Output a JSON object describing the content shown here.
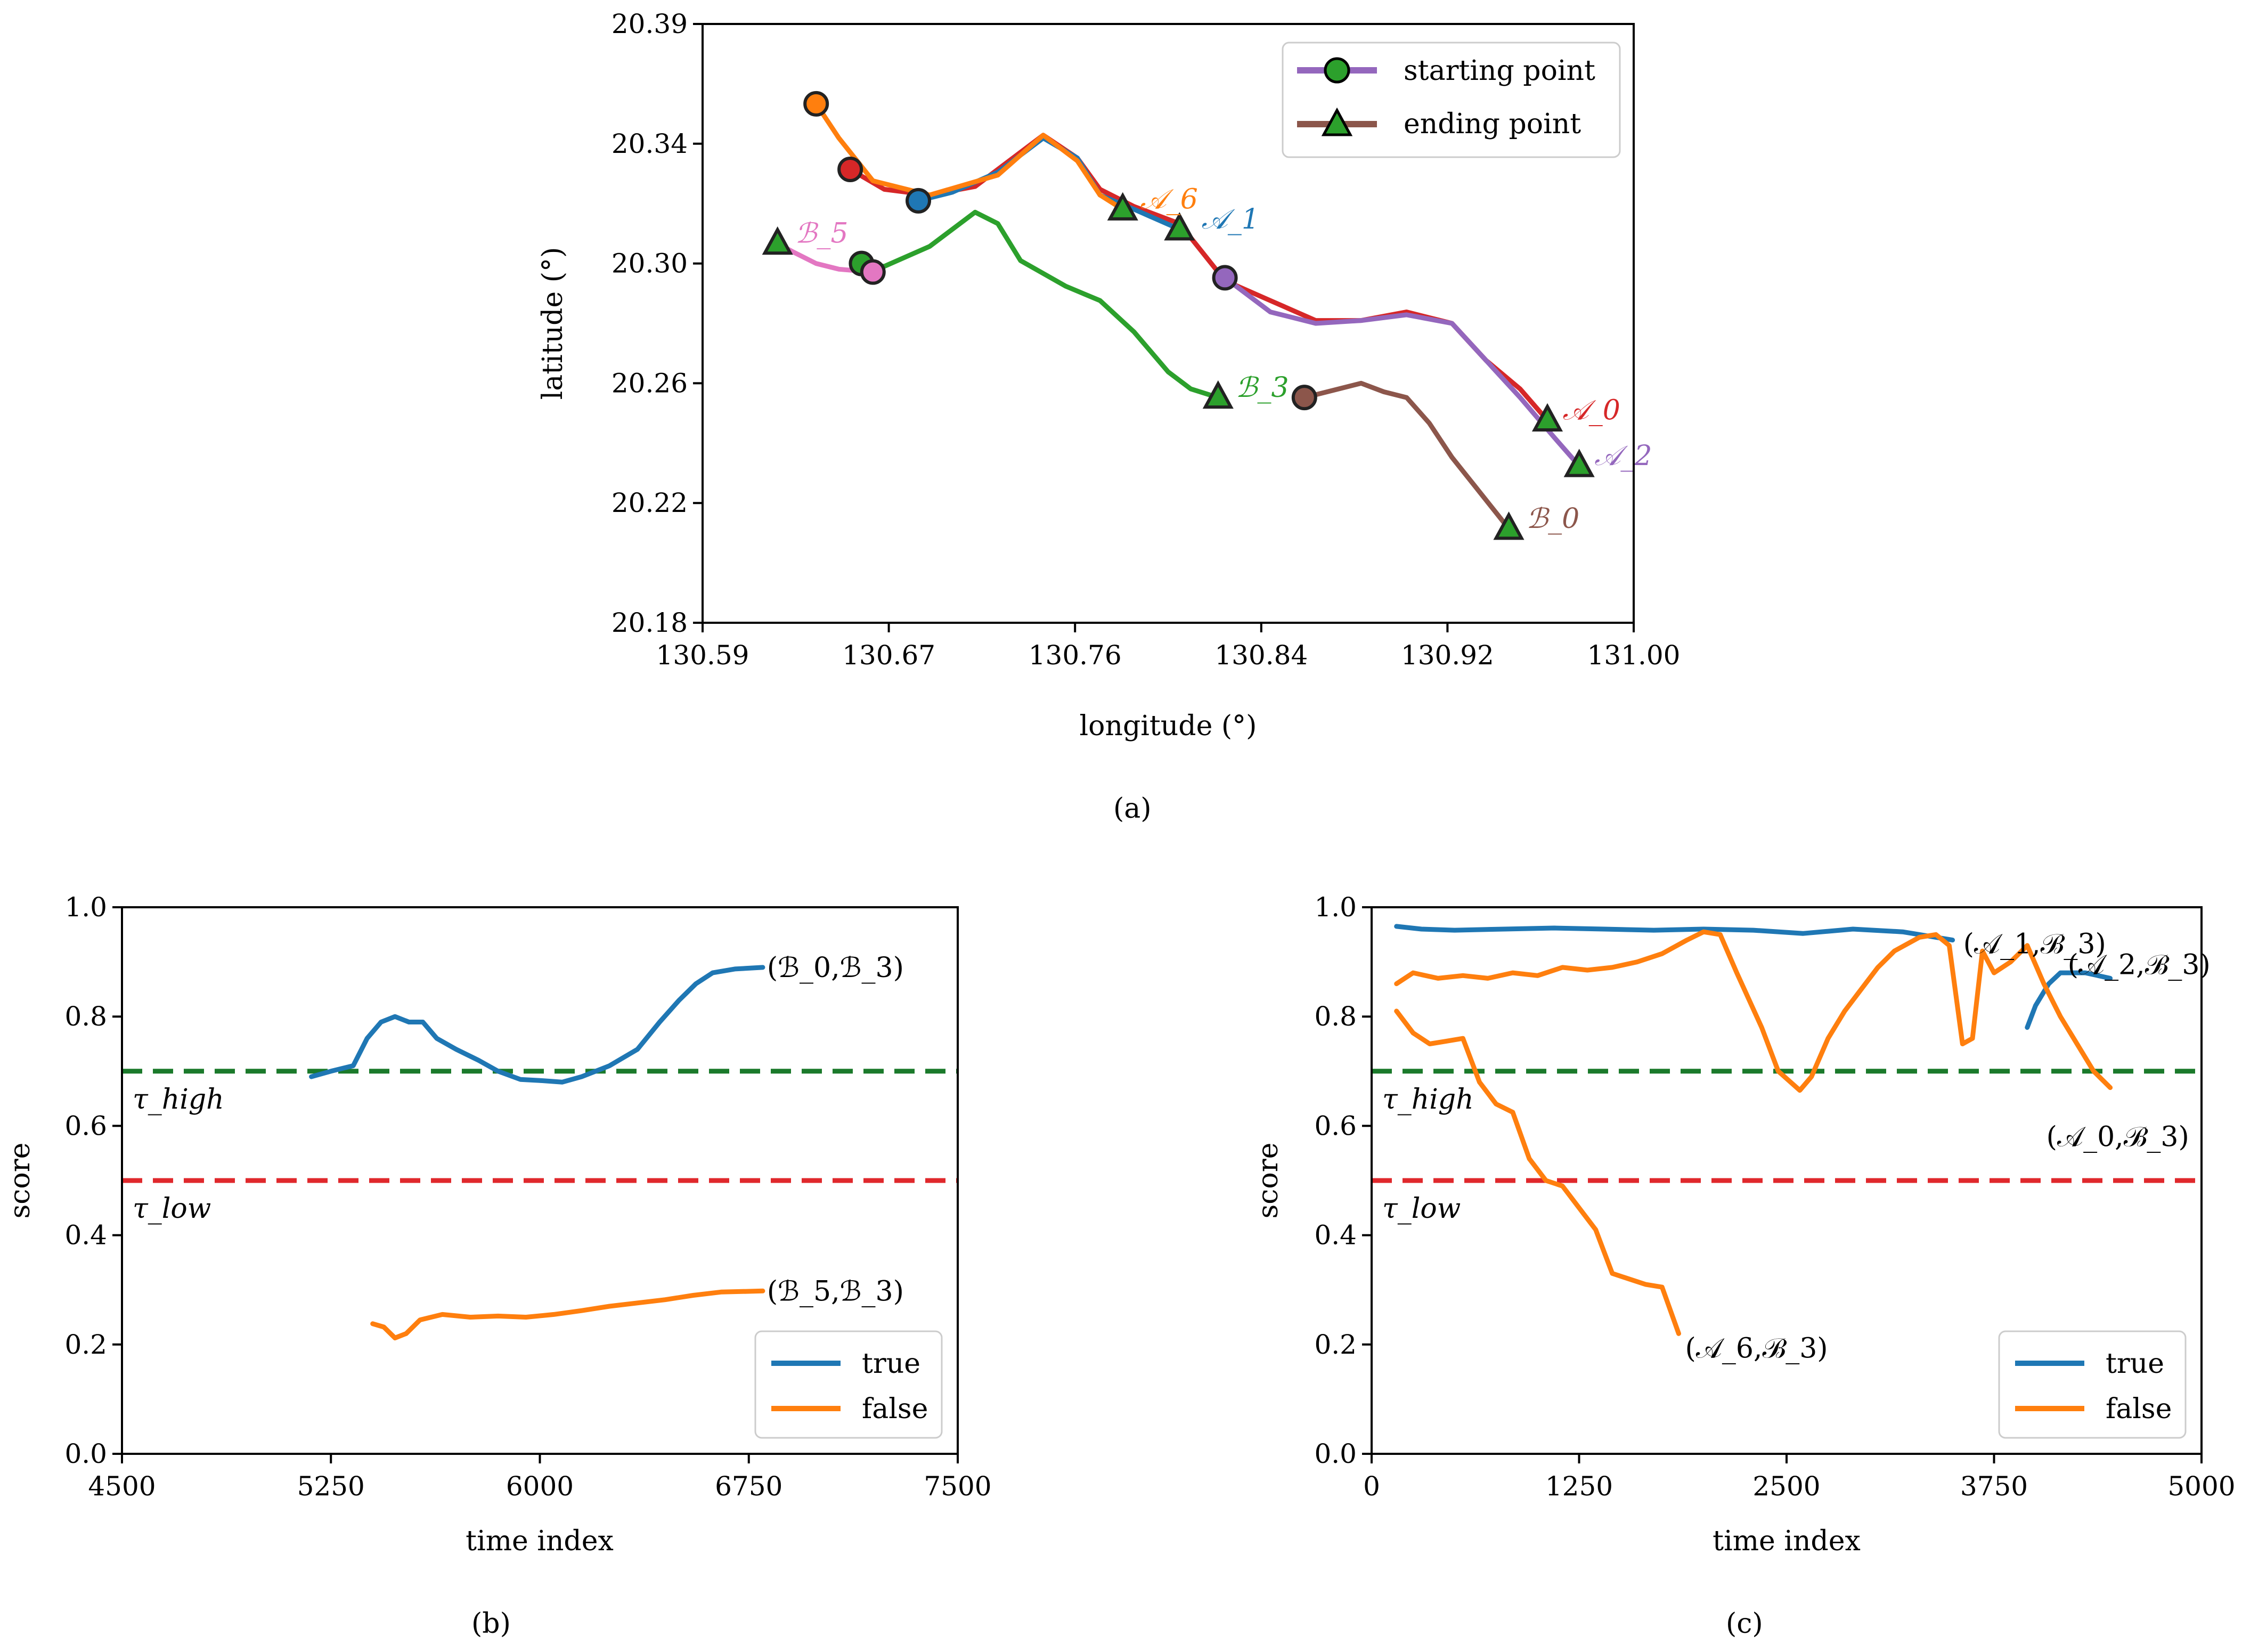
{
  "chart_data": [
    {
      "id": "a",
      "type": "line",
      "caption": "(a)",
      "xlabel": "longitude (°)",
      "ylabel": "latitude (°)",
      "xlim": [
        130.59,
        131.0
      ],
      "ylim": [
        20.18,
        20.39
      ],
      "xticks": [
        "130.59",
        "130.67",
        "130.76",
        "130.84",
        "130.92",
        "131.00"
      ],
      "yticks": [
        "20.18",
        "20.22",
        "20.26",
        "20.30",
        "20.34",
        "20.39"
      ],
      "legend": {
        "position": "top-right",
        "entries": [
          "starting point",
          "ending point"
        ]
      },
      "series": [
        {
          "name": "𝒜_0",
          "color": "#d62728",
          "start": [
            130.655,
            20.339
          ],
          "end": [
            130.962,
            20.251
          ],
          "label_at": [
            130.964,
            20.255
          ],
          "points": [
            [
              130.655,
              20.339
            ],
            [
              130.67,
              20.332
            ],
            [
              130.69,
              20.33
            ],
            [
              130.71,
              20.333
            ],
            [
              130.725,
              20.342
            ],
            [
              130.74,
              20.351
            ],
            [
              130.755,
              20.343
            ],
            [
              130.765,
              20.332
            ],
            [
              130.78,
              20.326
            ],
            [
              130.8,
              20.32
            ],
            [
              130.82,
              20.3
            ],
            [
              130.84,
              20.293
            ],
            [
              130.86,
              20.286
            ],
            [
              130.88,
              20.286
            ],
            [
              130.9,
              20.289
            ],
            [
              130.92,
              20.285
            ],
            [
              130.935,
              20.272
            ],
            [
              130.95,
              20.262
            ],
            [
              130.962,
              20.251
            ]
          ]
        },
        {
          "name": "𝒜_1",
          "color": "#1f77b4",
          "start": [
            130.685,
            20.328
          ],
          "end": [
            130.8,
            20.318
          ],
          "label_at": [
            130.805,
            20.322
          ],
          "points": [
            [
              130.685,
              20.328
            ],
            [
              130.7,
              20.331
            ],
            [
              130.72,
              20.338
            ],
            [
              130.74,
              20.35
            ],
            [
              130.755,
              20.343
            ],
            [
              130.765,
              20.33
            ],
            [
              130.78,
              20.325
            ],
            [
              130.8,
              20.318
            ]
          ]
        },
        {
          "name": "𝒜_2",
          "color": "#9467bd",
          "start": [
            130.82,
            20.301
          ],
          "end": [
            130.976,
            20.235
          ],
          "label_at": [
            130.978,
            20.239
          ],
          "points": [
            [
              130.82,
              20.301
            ],
            [
              130.84,
              20.289
            ],
            [
              130.86,
              20.285
            ],
            [
              130.88,
              20.286
            ],
            [
              130.9,
              20.288
            ],
            [
              130.92,
              20.285
            ],
            [
              130.935,
              20.272
            ],
            [
              130.95,
              20.259
            ],
            [
              130.965,
              20.245
            ],
            [
              130.976,
              20.235
            ]
          ]
        },
        {
          "name": "𝒜_6",
          "color": "#ff7f0e",
          "start": [
            130.64,
            20.362
          ],
          "end": [
            130.775,
            20.325
          ],
          "label_at": [
            130.778,
            20.329
          ],
          "points": [
            [
              130.64,
              20.362
            ],
            [
              130.65,
              20.35
            ],
            [
              130.665,
              20.335
            ],
            [
              130.69,
              20.33
            ],
            [
              130.72,
              20.337
            ],
            [
              130.74,
              20.351
            ],
            [
              130.755,
              20.342
            ],
            [
              130.765,
              20.33
            ],
            [
              130.775,
              20.325
            ]
          ]
        },
        {
          "name": "ℬ_0",
          "color": "#8c564b",
          "start": [
            130.855,
            20.259
          ],
          "end": [
            130.945,
            20.213
          ],
          "label_at": [
            130.948,
            20.217
          ],
          "points": [
            [
              130.855,
              20.259
            ],
            [
              130.87,
              20.262
            ],
            [
              130.88,
              20.264
            ],
            [
              130.89,
              20.261
            ],
            [
              130.9,
              20.259
            ],
            [
              130.91,
              20.25
            ],
            [
              130.92,
              20.238
            ],
            [
              130.93,
              20.228
            ],
            [
              130.94,
              20.218
            ],
            [
              130.945,
              20.213
            ]
          ]
        },
        {
          "name": "ℬ_3",
          "color": "#2ca02c",
          "start": [
            130.66,
            20.306
          ],
          "end": [
            130.817,
            20.259
          ],
          "label_at": [
            130.82,
            20.263
          ],
          "points": [
            [
              130.66,
              20.306
            ],
            [
              130.67,
              20.305
            ],
            [
              130.69,
              20.312
            ],
            [
              130.71,
              20.324
            ],
            [
              130.72,
              20.32
            ],
            [
              130.73,
              20.307
            ],
            [
              130.75,
              20.298
            ],
            [
              130.765,
              20.293
            ],
            [
              130.78,
              20.282
            ],
            [
              130.795,
              20.268
            ],
            [
              130.805,
              20.262
            ],
            [
              130.817,
              20.259
            ]
          ]
        },
        {
          "name": "ℬ_5",
          "color": "#e377c2",
          "start": [
            130.665,
            20.303
          ],
          "end": [
            130.623,
            20.313
          ],
          "label_at": [
            130.626,
            20.317
          ],
          "points": [
            [
              130.665,
              20.303
            ],
            [
              130.65,
              20.304
            ],
            [
              130.64,
              20.306
            ],
            [
              130.63,
              20.31
            ],
            [
              130.623,
              20.313
            ]
          ]
        }
      ]
    },
    {
      "id": "b",
      "type": "line",
      "caption": "(b)",
      "xlabel": "time index",
      "ylabel": "score",
      "xlim": [
        4500,
        7500
      ],
      "ylim": [
        0.0,
        1.0
      ],
      "xticks": [
        "4500",
        "5250",
        "6000",
        "6750",
        "7500"
      ],
      "yticks": [
        "0.0",
        "0.2",
        "0.4",
        "0.6",
        "0.8",
        "1.0"
      ],
      "thresholds": [
        {
          "name": "τ_high",
          "value": 0.7,
          "color": "#1b7a2b"
        },
        {
          "name": "τ_low",
          "value": 0.5,
          "color": "#e0282c"
        }
      ],
      "legend": {
        "position": "bottom-right",
        "entries": [
          {
            "name": "true",
            "color": "#1f77b4"
          },
          {
            "name": "false",
            "color": "#ff7f0e"
          }
        ]
      },
      "series": [
        {
          "name": "true",
          "label": "(ℬ_0,ℬ_3)",
          "color": "#1f77b4",
          "points": [
            [
              5180,
              0.69
            ],
            [
              5250,
              0.7
            ],
            [
              5330,
              0.71
            ],
            [
              5380,
              0.76
            ],
            [
              5430,
              0.79
            ],
            [
              5480,
              0.8
            ],
            [
              5530,
              0.79
            ],
            [
              5580,
              0.79
            ],
            [
              5630,
              0.76
            ],
            [
              5700,
              0.74
            ],
            [
              5780,
              0.72
            ],
            [
              5850,
              0.7
            ],
            [
              5930,
              0.685
            ],
            [
              6000,
              0.683
            ],
            [
              6080,
              0.68
            ],
            [
              6150,
              0.69
            ],
            [
              6250,
              0.71
            ],
            [
              6350,
              0.74
            ],
            [
              6430,
              0.79
            ],
            [
              6500,
              0.83
            ],
            [
              6560,
              0.86
            ],
            [
              6620,
              0.88
            ],
            [
              6700,
              0.887
            ],
            [
              6800,
              0.89
            ]
          ]
        },
        {
          "name": "false",
          "label": "(ℬ_5,ℬ_3)",
          "color": "#ff7f0e",
          "points": [
            [
              5400,
              0.238
            ],
            [
              5440,
              0.232
            ],
            [
              5480,
              0.212
            ],
            [
              5520,
              0.22
            ],
            [
              5570,
              0.245
            ],
            [
              5650,
              0.255
            ],
            [
              5750,
              0.25
            ],
            [
              5850,
              0.252
            ],
            [
              5950,
              0.25
            ],
            [
              6050,
              0.255
            ],
            [
              6150,
              0.262
            ],
            [
              6250,
              0.27
            ],
            [
              6350,
              0.276
            ],
            [
              6450,
              0.282
            ],
            [
              6550,
              0.29
            ],
            [
              6650,
              0.296
            ],
            [
              6800,
              0.298
            ]
          ]
        }
      ]
    },
    {
      "id": "c",
      "type": "line",
      "caption": "(c)",
      "xlabel": "time index",
      "ylabel": "score",
      "xlim": [
        0,
        5000
      ],
      "ylim": [
        0.0,
        1.0
      ],
      "xticks": [
        "0",
        "1250",
        "2500",
        "3750",
        "5000"
      ],
      "yticks": [
        "0.0",
        "0.2",
        "0.4",
        "0.6",
        "0.8",
        "1.0"
      ],
      "thresholds": [
        {
          "name": "τ_high",
          "value": 0.7,
          "color": "#1b7a2b"
        },
        {
          "name": "τ_low",
          "value": 0.5,
          "color": "#e0282c"
        }
      ],
      "legend": {
        "position": "bottom-right",
        "entries": [
          {
            "name": "true",
            "color": "#1f77b4"
          },
          {
            "name": "false",
            "color": "#ff7f0e"
          }
        ]
      },
      "series": [
        {
          "name": "true",
          "label": "(𝒜_1,ℬ_3)",
          "color": "#1f77b4",
          "points": [
            [
              150,
              0.965
            ],
            [
              300,
              0.96
            ],
            [
              500,
              0.958
            ],
            [
              800,
              0.96
            ],
            [
              1100,
              0.962
            ],
            [
              1400,
              0.96
            ],
            [
              1700,
              0.958
            ],
            [
              2000,
              0.96
            ],
            [
              2300,
              0.958
            ],
            [
              2600,
              0.952
            ],
            [
              2900,
              0.96
            ],
            [
              3200,
              0.955
            ],
            [
              3500,
              0.94
            ]
          ]
        },
        {
          "name": "true",
          "label": "(𝒜_2,ℬ_3)",
          "color": "#1f77b4",
          "points": [
            [
              3950,
              0.78
            ],
            [
              4000,
              0.82
            ],
            [
              4080,
              0.86
            ],
            [
              4150,
              0.88
            ],
            [
              4300,
              0.88
            ],
            [
              4450,
              0.87
            ]
          ]
        },
        {
          "name": "false",
          "label": "(𝒜_0,ℬ_3)",
          "color": "#ff7f0e",
          "points": [
            [
              150,
              0.86
            ],
            [
              250,
              0.88
            ],
            [
              400,
              0.87
            ],
            [
              550,
              0.875
            ],
            [
              700,
              0.87
            ],
            [
              850,
              0.88
            ],
            [
              1000,
              0.875
            ],
            [
              1150,
              0.89
            ],
            [
              1300,
              0.885
            ],
            [
              1450,
              0.89
            ],
            [
              1600,
              0.9
            ],
            [
              1750,
              0.915
            ],
            [
              1900,
              0.94
            ],
            [
              2000,
              0.955
            ],
            [
              2100,
              0.95
            ],
            [
              2200,
              0.88
            ],
            [
              2350,
              0.78
            ],
            [
              2450,
              0.7
            ],
            [
              2580,
              0.665
            ],
            [
              2650,
              0.69
            ],
            [
              2750,
              0.76
            ],
            [
              2850,
              0.81
            ],
            [
              2950,
              0.85
            ],
            [
              3050,
              0.89
            ],
            [
              3150,
              0.92
            ],
            [
              3300,
              0.945
            ],
            [
              3400,
              0.95
            ],
            [
              3480,
              0.93
            ],
            [
              3560,
              0.75
            ],
            [
              3620,
              0.76
            ],
            [
              3680,
              0.92
            ],
            [
              3750,
              0.88
            ],
            [
              3850,
              0.9
            ],
            [
              3950,
              0.93
            ],
            [
              4050,
              0.86
            ],
            [
              4150,
              0.8
            ],
            [
              4250,
              0.75
            ],
            [
              4350,
              0.7
            ],
            [
              4450,
              0.67
            ]
          ]
        },
        {
          "name": "false",
          "label": "(𝒜_6,ℬ_3)",
          "color": "#ff7f0e",
          "points": [
            [
              150,
              0.81
            ],
            [
              250,
              0.77
            ],
            [
              350,
              0.75
            ],
            [
              450,
              0.755
            ],
            [
              550,
              0.76
            ],
            [
              650,
              0.68
            ],
            [
              750,
              0.64
            ],
            [
              850,
              0.625
            ],
            [
              950,
              0.54
            ],
            [
              1050,
              0.5
            ],
            [
              1150,
              0.49
            ],
            [
              1250,
              0.45
            ],
            [
              1350,
              0.41
            ],
            [
              1400,
              0.37
            ],
            [
              1450,
              0.33
            ],
            [
              1550,
              0.32
            ],
            [
              1650,
              0.31
            ],
            [
              1750,
              0.305
            ],
            [
              1850,
              0.22
            ]
          ]
        }
      ]
    }
  ]
}
